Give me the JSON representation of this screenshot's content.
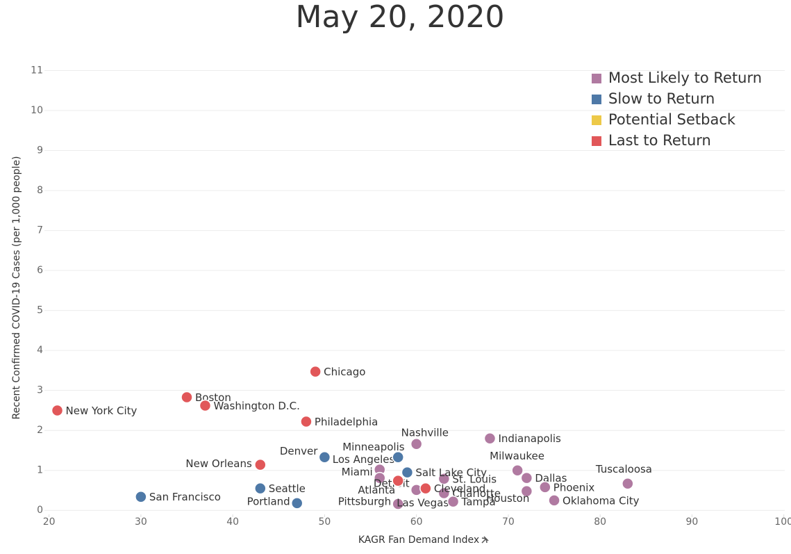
{
  "chart_data": {
    "type": "scatter",
    "title": "May 20, 2020",
    "x_label": "KAGR Fan Demand Index",
    "y_label": "Recent Confirmed COVID-19 Cases (per 1,000 people)",
    "xlim": [
      19.5,
      100.1
    ],
    "ylim": [
      -0.1,
      11.2
    ],
    "xticks": [
      20,
      30,
      40,
      50,
      60,
      70,
      80,
      90,
      100
    ],
    "yticks": [
      0,
      1,
      2,
      3,
      4,
      5,
      6,
      7,
      8,
      9,
      10,
      11
    ],
    "grid": true,
    "legend": "top-right",
    "series": [
      {
        "name": "Most Likely to Return",
        "color": "#b07aa1",
        "labels": [
          "Nashville",
          "Indianapolis",
          "Los Angeles",
          "Miami",
          "Detroit",
          "Pittsburgh",
          "Las Vegas",
          "St. Louis",
          "Charlotte",
          "Tampa",
          "Milwaukee",
          "Dallas",
          "Houston",
          "Phoenix",
          "Oklahoma City",
          "Tuscaloosa"
        ],
        "x": [
          60,
          68,
          56,
          56,
          60,
          58,
          58,
          63,
          63,
          64,
          71,
          72,
          72,
          74,
          75,
          83
        ],
        "values": [
          1.66,
          1.8,
          1.02,
          0.81,
          0.51,
          0.18,
          0.16,
          0.79,
          0.43,
          0.22,
          1.0,
          0.81,
          0.48,
          0.58,
          0.25,
          0.67
        ]
      },
      {
        "name": "Slow to Return",
        "color": "#4e79a7",
        "labels": [
          "San Francisco",
          "Seattle",
          "Portland",
          "Denver",
          "Minneapolis",
          "Salt Lake City"
        ],
        "x": [
          30,
          43,
          47,
          50,
          58,
          59
        ],
        "values": [
          0.34,
          0.55,
          0.18,
          1.33,
          1.33,
          0.95
        ]
      },
      {
        "name": "Potential Setback",
        "color": "#edc948",
        "labels": [],
        "x": [],
        "values": []
      },
      {
        "name": "Last to Return",
        "color": "#e15759",
        "labels": [
          "New York City",
          "Boston",
          "Washington D.C.",
          "Chicago",
          "Philadelphia",
          "New Orleans",
          "Atlanta",
          "Cleveland"
        ],
        "x": [
          20.9,
          35,
          37,
          49,
          48,
          43,
          58,
          61
        ],
        "values": [
          2.5,
          2.83,
          2.62,
          3.47,
          2.22,
          1.14,
          0.74,
          0.55
        ]
      }
    ]
  }
}
